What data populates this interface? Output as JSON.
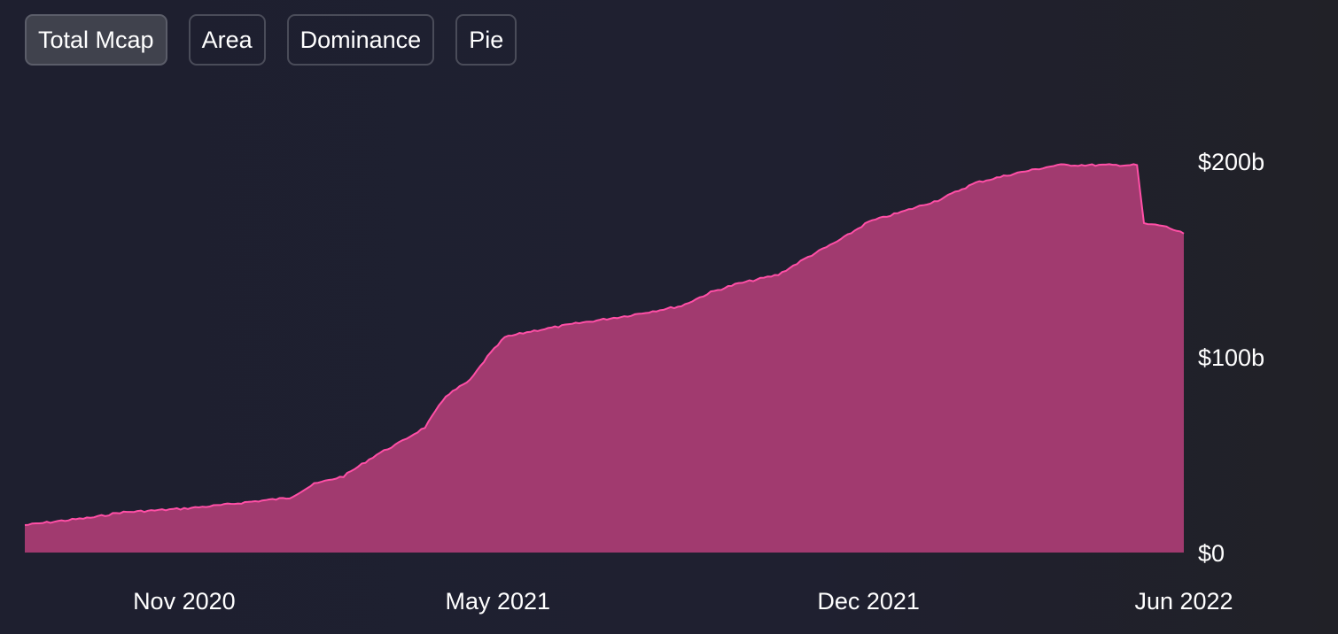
{
  "tabs": [
    {
      "label": "Total Mcap",
      "active": true
    },
    {
      "label": "Area",
      "active": false
    },
    {
      "label": "Dominance",
      "active": false
    },
    {
      "label": "Pie",
      "active": false
    }
  ],
  "colors": {
    "area_fill": "#a13a6f",
    "area_stroke": "#ff4fa6",
    "background": "#1f2030"
  },
  "chart_data": {
    "type": "area",
    "title": "",
    "xlabel": "",
    "ylabel": "",
    "y_unit": "USD",
    "ylim": [
      0,
      200000000000
    ],
    "x_range": [
      "2020-08-01",
      "2022-06-01"
    ],
    "y_ticks": [
      {
        "value": 0,
        "label": "$0"
      },
      {
        "value": 100000000000,
        "label": "$100b"
      },
      {
        "value": 200000000000,
        "label": "$200b"
      }
    ],
    "x_ticks": [
      {
        "date": "2020-11-01",
        "label": "Nov 2020"
      },
      {
        "date": "2021-05-01",
        "label": "May 2021"
      },
      {
        "date": "2021-12-01",
        "label": "Dec 2021"
      },
      {
        "date": "2022-06-01",
        "label": "Jun 2022"
      }
    ],
    "grid": false,
    "legend": "none",
    "series": [
      {
        "points": [
          {
            "date": "2020-08-01",
            "value": 14000000000
          },
          {
            "date": "2020-08-20",
            "value": 16000000000
          },
          {
            "date": "2020-09-10",
            "value": 18000000000
          },
          {
            "date": "2020-09-25",
            "value": 20500000000
          },
          {
            "date": "2020-10-15",
            "value": 21500000000
          },
          {
            "date": "2020-11-01",
            "value": 22500000000
          },
          {
            "date": "2020-11-20",
            "value": 24000000000
          },
          {
            "date": "2020-12-10",
            "value": 26000000000
          },
          {
            "date": "2021-01-01",
            "value": 28000000000
          },
          {
            "date": "2021-01-15",
            "value": 35000000000
          },
          {
            "date": "2021-02-01",
            "value": 39000000000
          },
          {
            "date": "2021-02-20",
            "value": 50000000000
          },
          {
            "date": "2021-03-05",
            "value": 56000000000
          },
          {
            "date": "2021-03-20",
            "value": 64000000000
          },
          {
            "date": "2021-04-01",
            "value": 80000000000
          },
          {
            "date": "2021-04-15",
            "value": 88000000000
          },
          {
            "date": "2021-04-25",
            "value": 100000000000
          },
          {
            "date": "2021-05-05",
            "value": 110000000000
          },
          {
            "date": "2021-05-20",
            "value": 113000000000
          },
          {
            "date": "2021-06-15",
            "value": 117000000000
          },
          {
            "date": "2021-07-15",
            "value": 121000000000
          },
          {
            "date": "2021-08-15",
            "value": 126000000000
          },
          {
            "date": "2021-09-01",
            "value": 133000000000
          },
          {
            "date": "2021-09-15",
            "value": 137000000000
          },
          {
            "date": "2021-10-10",
            "value": 142000000000
          },
          {
            "date": "2021-10-25",
            "value": 150000000000
          },
          {
            "date": "2021-11-15",
            "value": 160000000000
          },
          {
            "date": "2021-12-01",
            "value": 169000000000
          },
          {
            "date": "2021-12-20",
            "value": 174000000000
          },
          {
            "date": "2022-01-10",
            "value": 180000000000
          },
          {
            "date": "2022-02-01",
            "value": 189000000000
          },
          {
            "date": "2022-02-25",
            "value": 194000000000
          },
          {
            "date": "2022-03-20",
            "value": 198000000000
          },
          {
            "date": "2022-04-15",
            "value": 198000000000
          },
          {
            "date": "2022-05-05",
            "value": 198000000000
          },
          {
            "date": "2022-05-09",
            "value": 168000000000
          },
          {
            "date": "2022-05-20",
            "value": 167000000000
          },
          {
            "date": "2022-06-01",
            "value": 163000000000
          }
        ]
      }
    ]
  }
}
